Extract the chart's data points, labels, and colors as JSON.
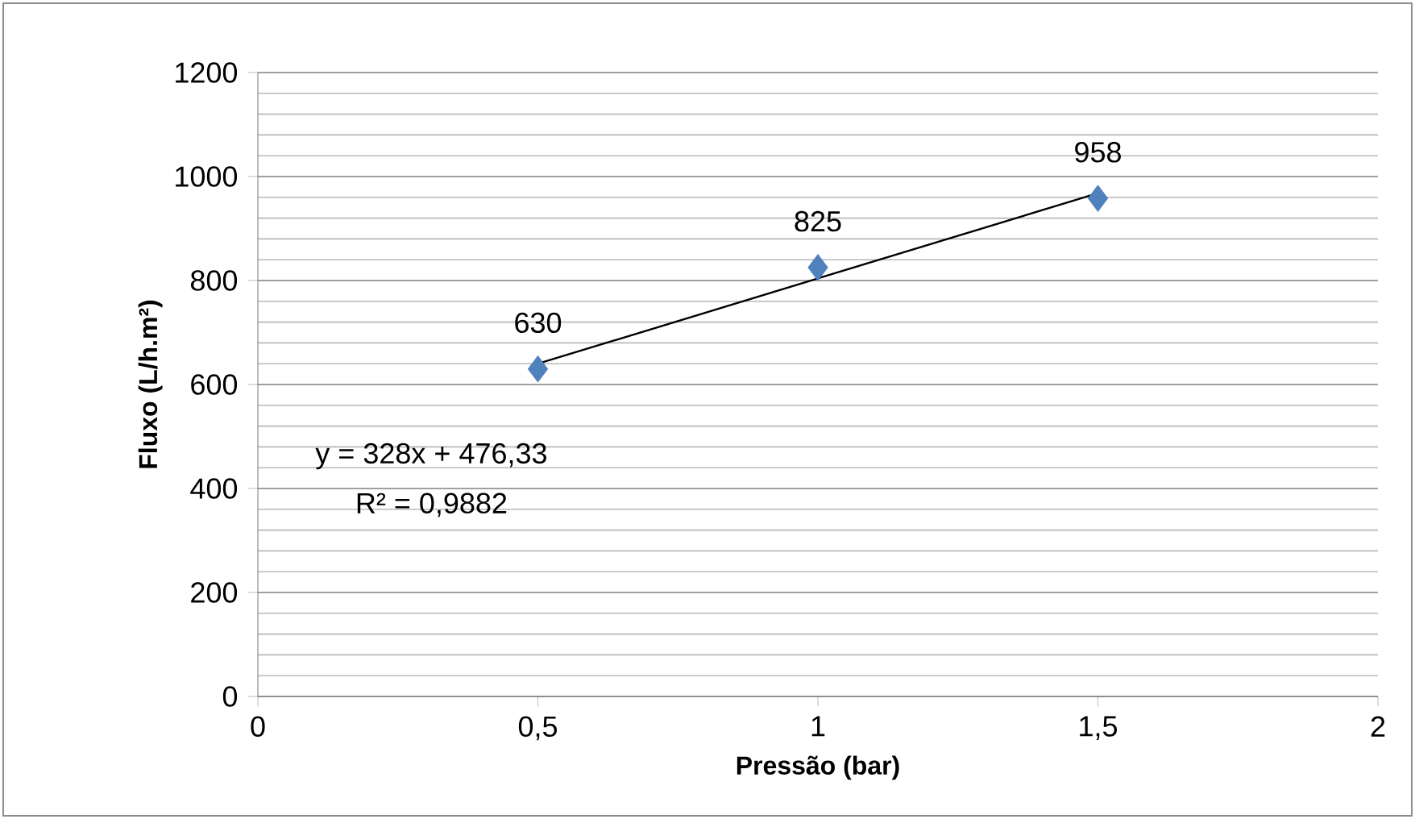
{
  "chart_data": {
    "type": "scatter",
    "xlabel": "Pressão (bar)",
    "ylabel": "Fluxo (L/h.m²)",
    "x": [
      0.5,
      1,
      1.5
    ],
    "series": [
      {
        "color": "#4f81bd",
        "marker": "diamond",
        "values": [
          630,
          825,
          958
        ],
        "data_labels": true
      },
      {
        "type": "line",
        "color": "#000000",
        "marker": "none",
        "x": [
          0.5,
          1.5
        ],
        "values": [
          640,
          968
        ]
      }
    ],
    "annotations": [
      "y = 328x + 476,33",
      "R² = 0,9882"
    ],
    "xlim": [
      0,
      2
    ],
    "xticks": [
      0,
      {
        "value": 0.5,
        "label": "0,5"
      },
      1,
      {
        "value": 1.5,
        "label": "1,5"
      },
      2
    ],
    "ylim": [
      0,
      1200
    ],
    "yticks": [
      0,
      200,
      400,
      600,
      800,
      1000,
      1200
    ],
    "grid": "y"
  }
}
